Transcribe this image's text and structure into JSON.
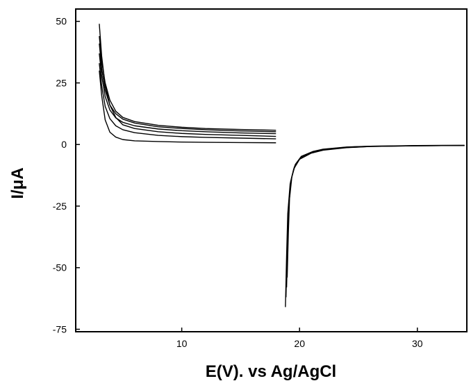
{
  "chart_data": {
    "type": "line",
    "xlabel": "E(V). vs Ag/AgCl",
    "ylabel": "I/μA",
    "xlim": [
      1.0,
      34.2
    ],
    "ylim": [
      -76,
      55
    ],
    "x_ticks": [
      10,
      20,
      30
    ],
    "x_tick_labels": [
      "10",
      "20",
      "30"
    ],
    "y_ticks": [
      50,
      25,
      0,
      -25,
      -50,
      -75
    ],
    "y_tick_labels": [
      "50",
      "25",
      "0",
      "-25",
      "-50",
      "-75"
    ],
    "grid": false,
    "legend": "none",
    "line_color": "#000000",
    "series": [
      {
        "x": [
          3.0,
          3.2,
          3.5,
          3.9,
          4.4,
          5.0,
          6.0,
          8.0,
          10.0,
          12.0,
          15.0,
          18.0
        ],
        "y": [
          49,
          36,
          24,
          16,
          11,
          8,
          6.5,
          5.2,
          4.5,
          4.1,
          3.7,
          3.3
        ]
      },
      {
        "x": [
          3.0,
          3.2,
          3.5,
          3.9,
          4.4,
          5.0,
          6.0,
          8.0,
          10.0,
          12.0,
          15.0,
          18.0
        ],
        "y": [
          44,
          34,
          25,
          18,
          13.5,
          11,
          9.3,
          7.8,
          7.0,
          6.5,
          6.1,
          5.8
        ]
      },
      {
        "x": [
          3.0,
          3.2,
          3.5,
          3.9,
          4.4,
          5.0,
          6.0,
          8.0,
          10.0,
          12.0,
          15.0,
          18.0
        ],
        "y": [
          41,
          31,
          22,
          16,
          12.5,
          10.3,
          8.7,
          7.2,
          6.5,
          6.0,
          5.5,
          5.2
        ]
      },
      {
        "x": [
          3.0,
          3.2,
          3.5,
          3.9,
          4.4,
          5.0,
          6.0,
          8.0,
          10.0,
          12.0,
          15.0,
          18.0
        ],
        "y": [
          37,
          28,
          19.5,
          14,
          10.8,
          9.0,
          7.6,
          6.3,
          5.6,
          5.2,
          4.7,
          4.4
        ]
      },
      {
        "x": [
          3.0,
          3.2,
          3.5,
          3.9,
          4.4,
          5.0,
          6.0,
          8.0,
          10.0,
          12.0,
          15.0,
          18.0
        ],
        "y": [
          33,
          24,
          15.5,
          10.5,
          7.6,
          6.0,
          4.8,
          3.7,
          3.2,
          2.9,
          2.6,
          2.3
        ]
      },
      {
        "x": [
          3.0,
          3.2,
          3.5,
          3.9,
          4.4,
          5.0,
          6.0,
          8.0,
          10.0,
          12.0,
          15.0,
          18.0
        ],
        "y": [
          30,
          20,
          10,
          5,
          3.0,
          2.0,
          1.5,
          1.2,
          1.0,
          0.9,
          0.8,
          0.7
        ]
      },
      {
        "x": [
          18.8,
          18.9,
          19.0,
          19.2,
          19.5,
          20.0,
          21.0,
          22.0,
          24.0,
          26.0,
          30.0,
          34.0
        ],
        "y": [
          -66,
          -45,
          -28,
          -16,
          -10,
          -6,
          -3.5,
          -2.3,
          -1.3,
          -0.8,
          -0.5,
          -0.4
        ]
      },
      {
        "x": [
          18.85,
          18.95,
          19.05,
          19.25,
          19.55,
          20.05,
          21.05,
          22.0,
          24.0,
          26.0,
          30.0,
          34.0
        ],
        "y": [
          -62,
          -42,
          -26,
          -15,
          -9.2,
          -5.6,
          -3.2,
          -2.1,
          -1.2,
          -0.8,
          -0.5,
          -0.4
        ]
      },
      {
        "x": [
          18.9,
          19.0,
          19.1,
          19.3,
          19.6,
          20.1,
          21.1,
          22.0,
          24.0,
          26.0,
          30.0,
          34.0
        ],
        "y": [
          -58,
          -39,
          -24,
          -14,
          -8.6,
          -5.2,
          -3.0,
          -2.0,
          -1.1,
          -0.7,
          -0.5,
          -0.4
        ]
      },
      {
        "x": [
          18.95,
          19.05,
          19.15,
          19.35,
          19.65,
          20.15,
          21.15,
          22.0,
          24.0,
          26.0,
          30.0,
          34.0
        ],
        "y": [
          -54,
          -36,
          -22,
          -13,
          -8.0,
          -4.8,
          -2.8,
          -1.9,
          -1.0,
          -0.7,
          -0.4,
          -0.3
        ]
      }
    ]
  }
}
